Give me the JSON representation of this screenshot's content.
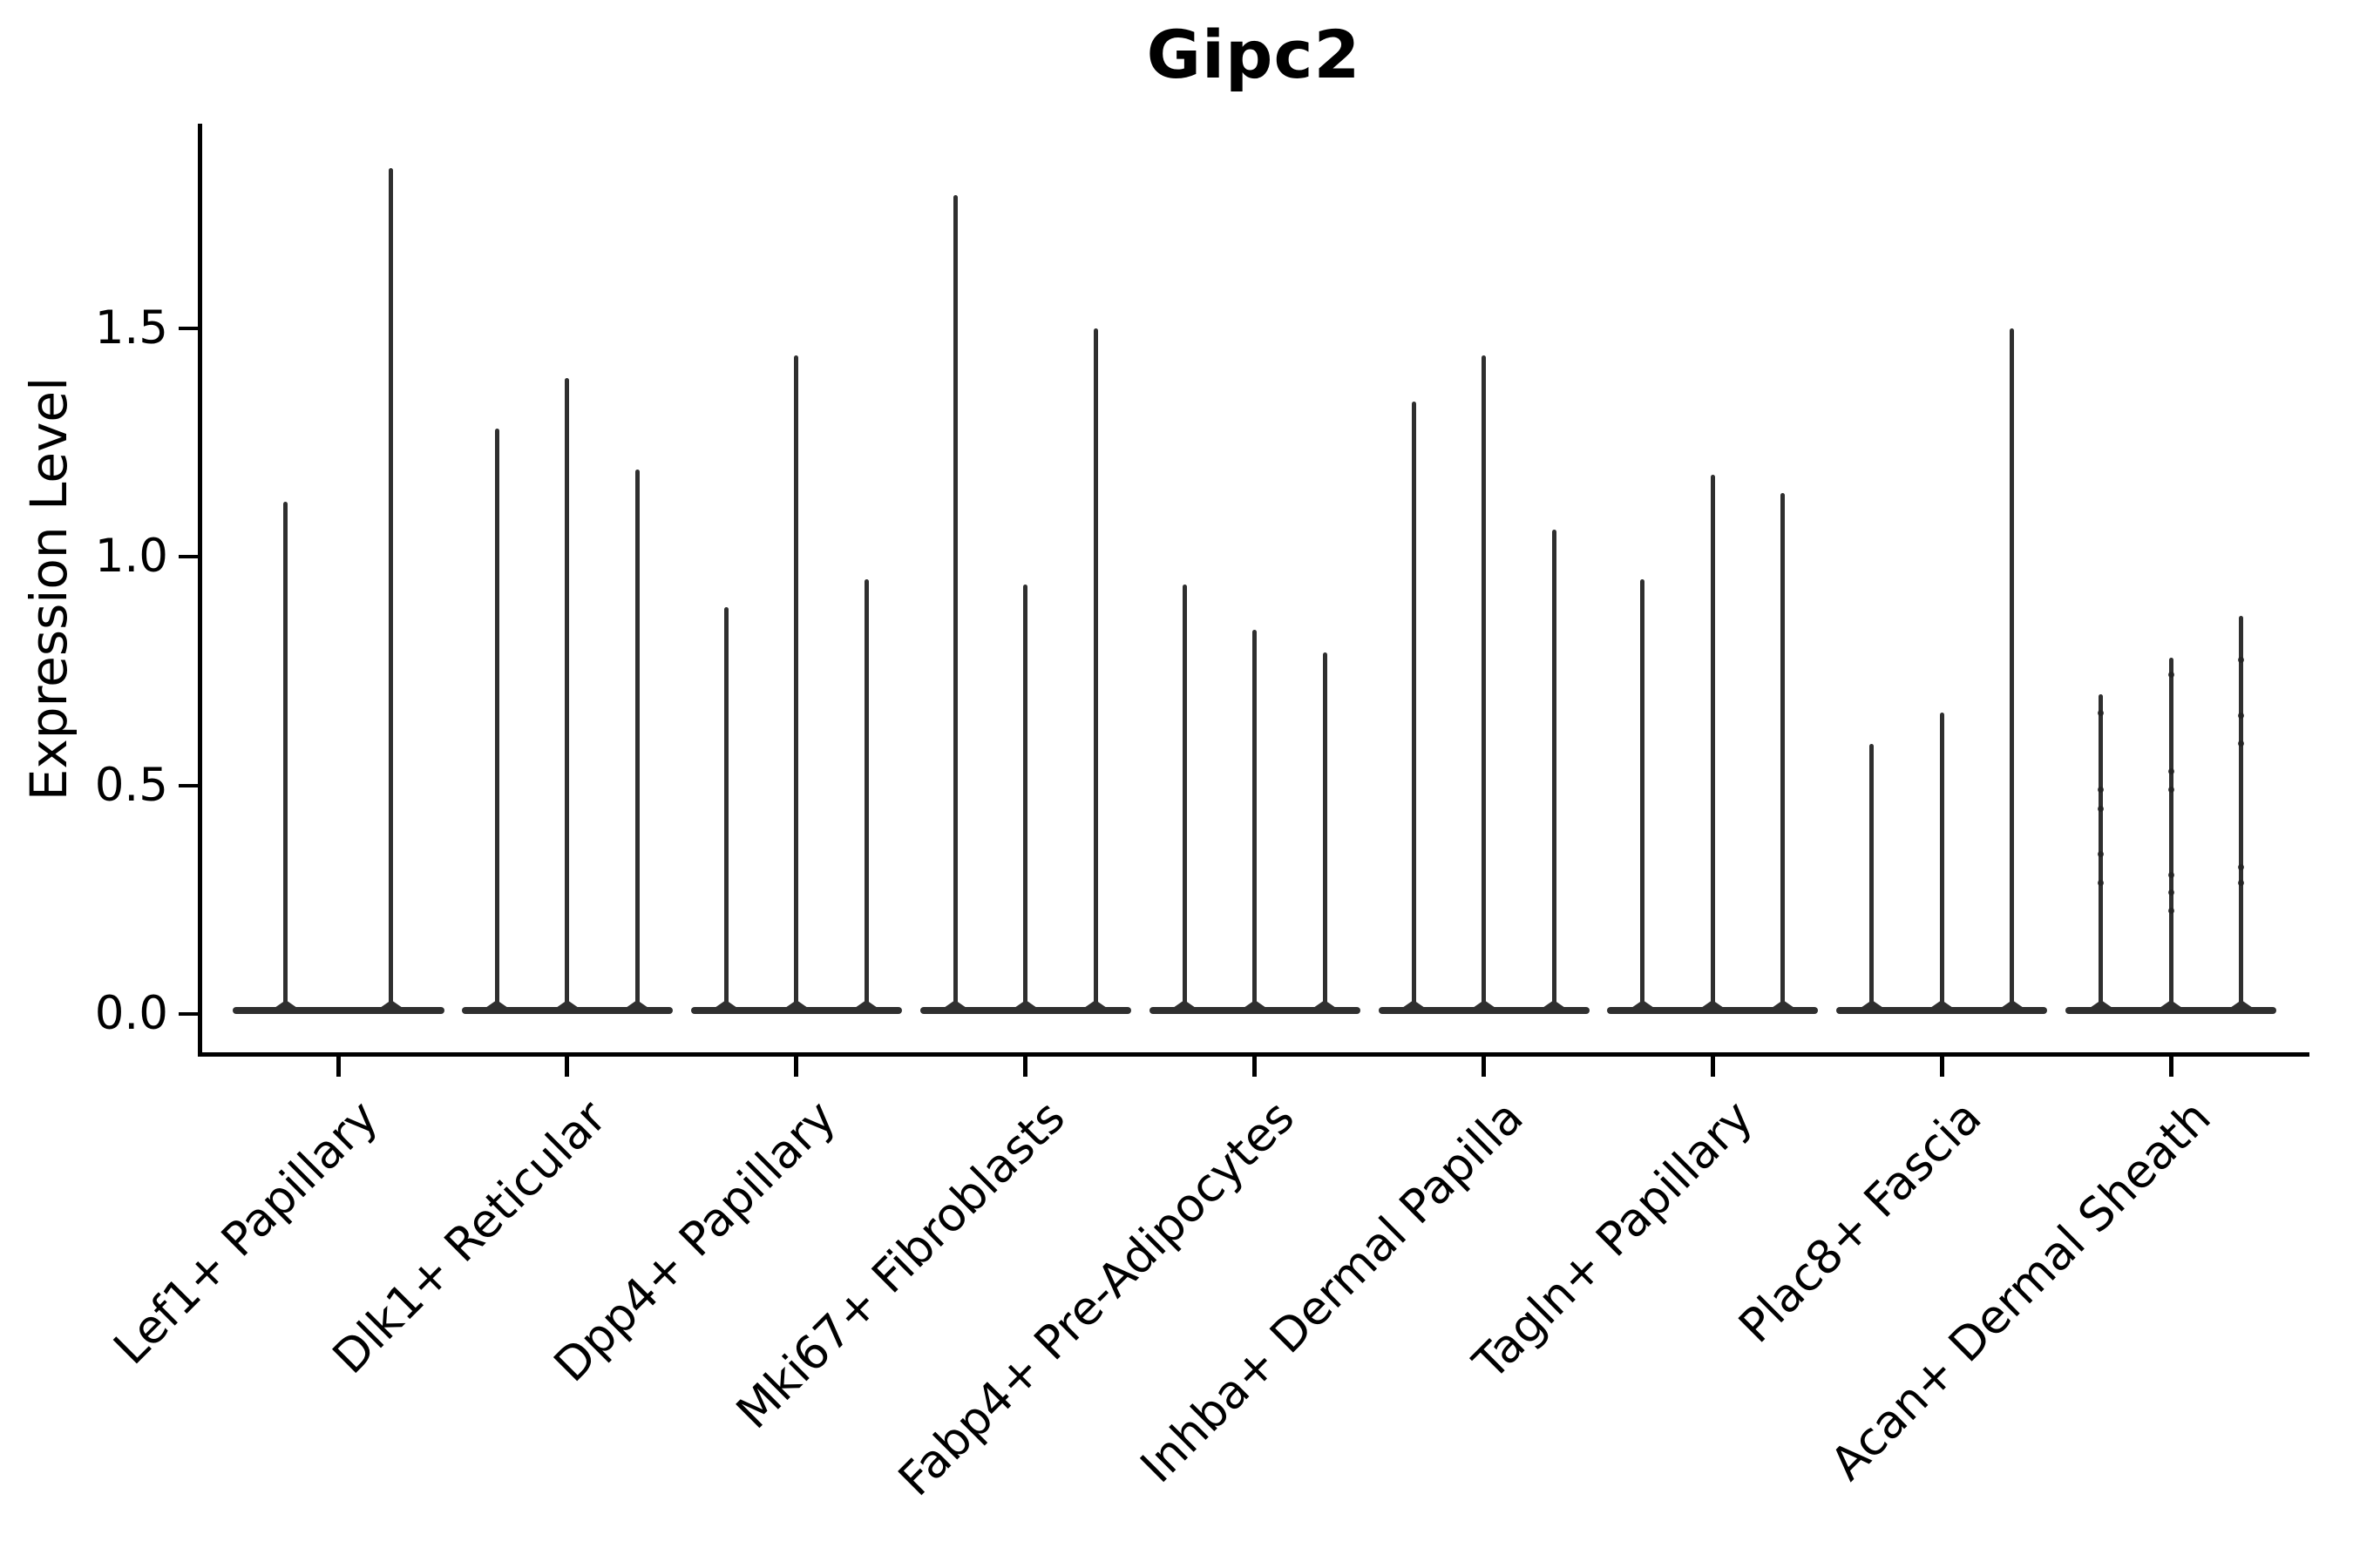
{
  "chart_data": {
    "type": "violin",
    "title": "Gipc2",
    "xlabel": "",
    "ylabel": "Expression Level",
    "ylim": [
      0,
      1.95
    ],
    "yticks": [
      0.0,
      0.5,
      1.0,
      1.5
    ],
    "ytick_labels": [
      "0.0",
      "0.5",
      "1.0",
      "1.5"
    ],
    "grid": false,
    "legend_position": "none",
    "background_color": "#ffffff",
    "violin_color": "#2f2f2f",
    "axis_color": "#000000",
    "description": "Stacked-at-zero violin plot: each cell-type group shows 2-3 needle-thin violins, flat dense base at expression 0 with a thin spike rising to the maximum expression value.",
    "categories": [
      "Lef1+ Papillary",
      "Dlk1+ Reticular",
      "Dpp4+ Papillary",
      "Mki67+ Fibroblasts",
      "Fabp4+ Pre-Adipocytes",
      "Inhba+ Dermal Papilla",
      "Tagln+ Papillary",
      "Plac8+ Fascia",
      "Acan+ Dermal Sheath"
    ],
    "groups": [
      {
        "label": "Lef1+ Papillary",
        "violin_maxima": [
          1.12,
          1.85
        ]
      },
      {
        "label": "Dlk1+ Reticular",
        "violin_maxima": [
          1.28,
          1.39,
          1.19
        ]
      },
      {
        "label": "Dpp4+ Papillary",
        "violin_maxima": [
          0.89,
          1.44,
          0.95
        ]
      },
      {
        "label": "Mki67+ Fibroblasts",
        "violin_maxima": [
          1.79,
          0.94,
          1.5
        ]
      },
      {
        "label": "Fabp4+ Pre-Adipocytes",
        "violin_maxima": [
          0.94,
          0.84,
          0.79
        ]
      },
      {
        "label": "Inhba+ Dermal Papilla",
        "violin_maxima": [
          1.34,
          1.44,
          1.06
        ]
      },
      {
        "label": "Tagln+ Papillary",
        "violin_maxima": [
          0.95,
          1.18,
          1.14
        ]
      },
      {
        "label": "Plac8+ Fascia",
        "violin_maxima": [
          0.59,
          0.66,
          1.5
        ]
      },
      {
        "label": "Acan+ Dermal Sheath",
        "violin_maxima": [
          0.7,
          0.78,
          0.87
        ],
        "dot_fractions": [
          [
            0.06,
            0.3,
            0.36,
            0.5,
            0.59
          ],
          [
            0.05,
            0.32,
            0.37,
            0.61,
            0.66,
            0.71
          ],
          [
            0.11,
            0.25,
            0.32,
            0.63,
            0.67
          ]
        ]
      }
    ]
  }
}
